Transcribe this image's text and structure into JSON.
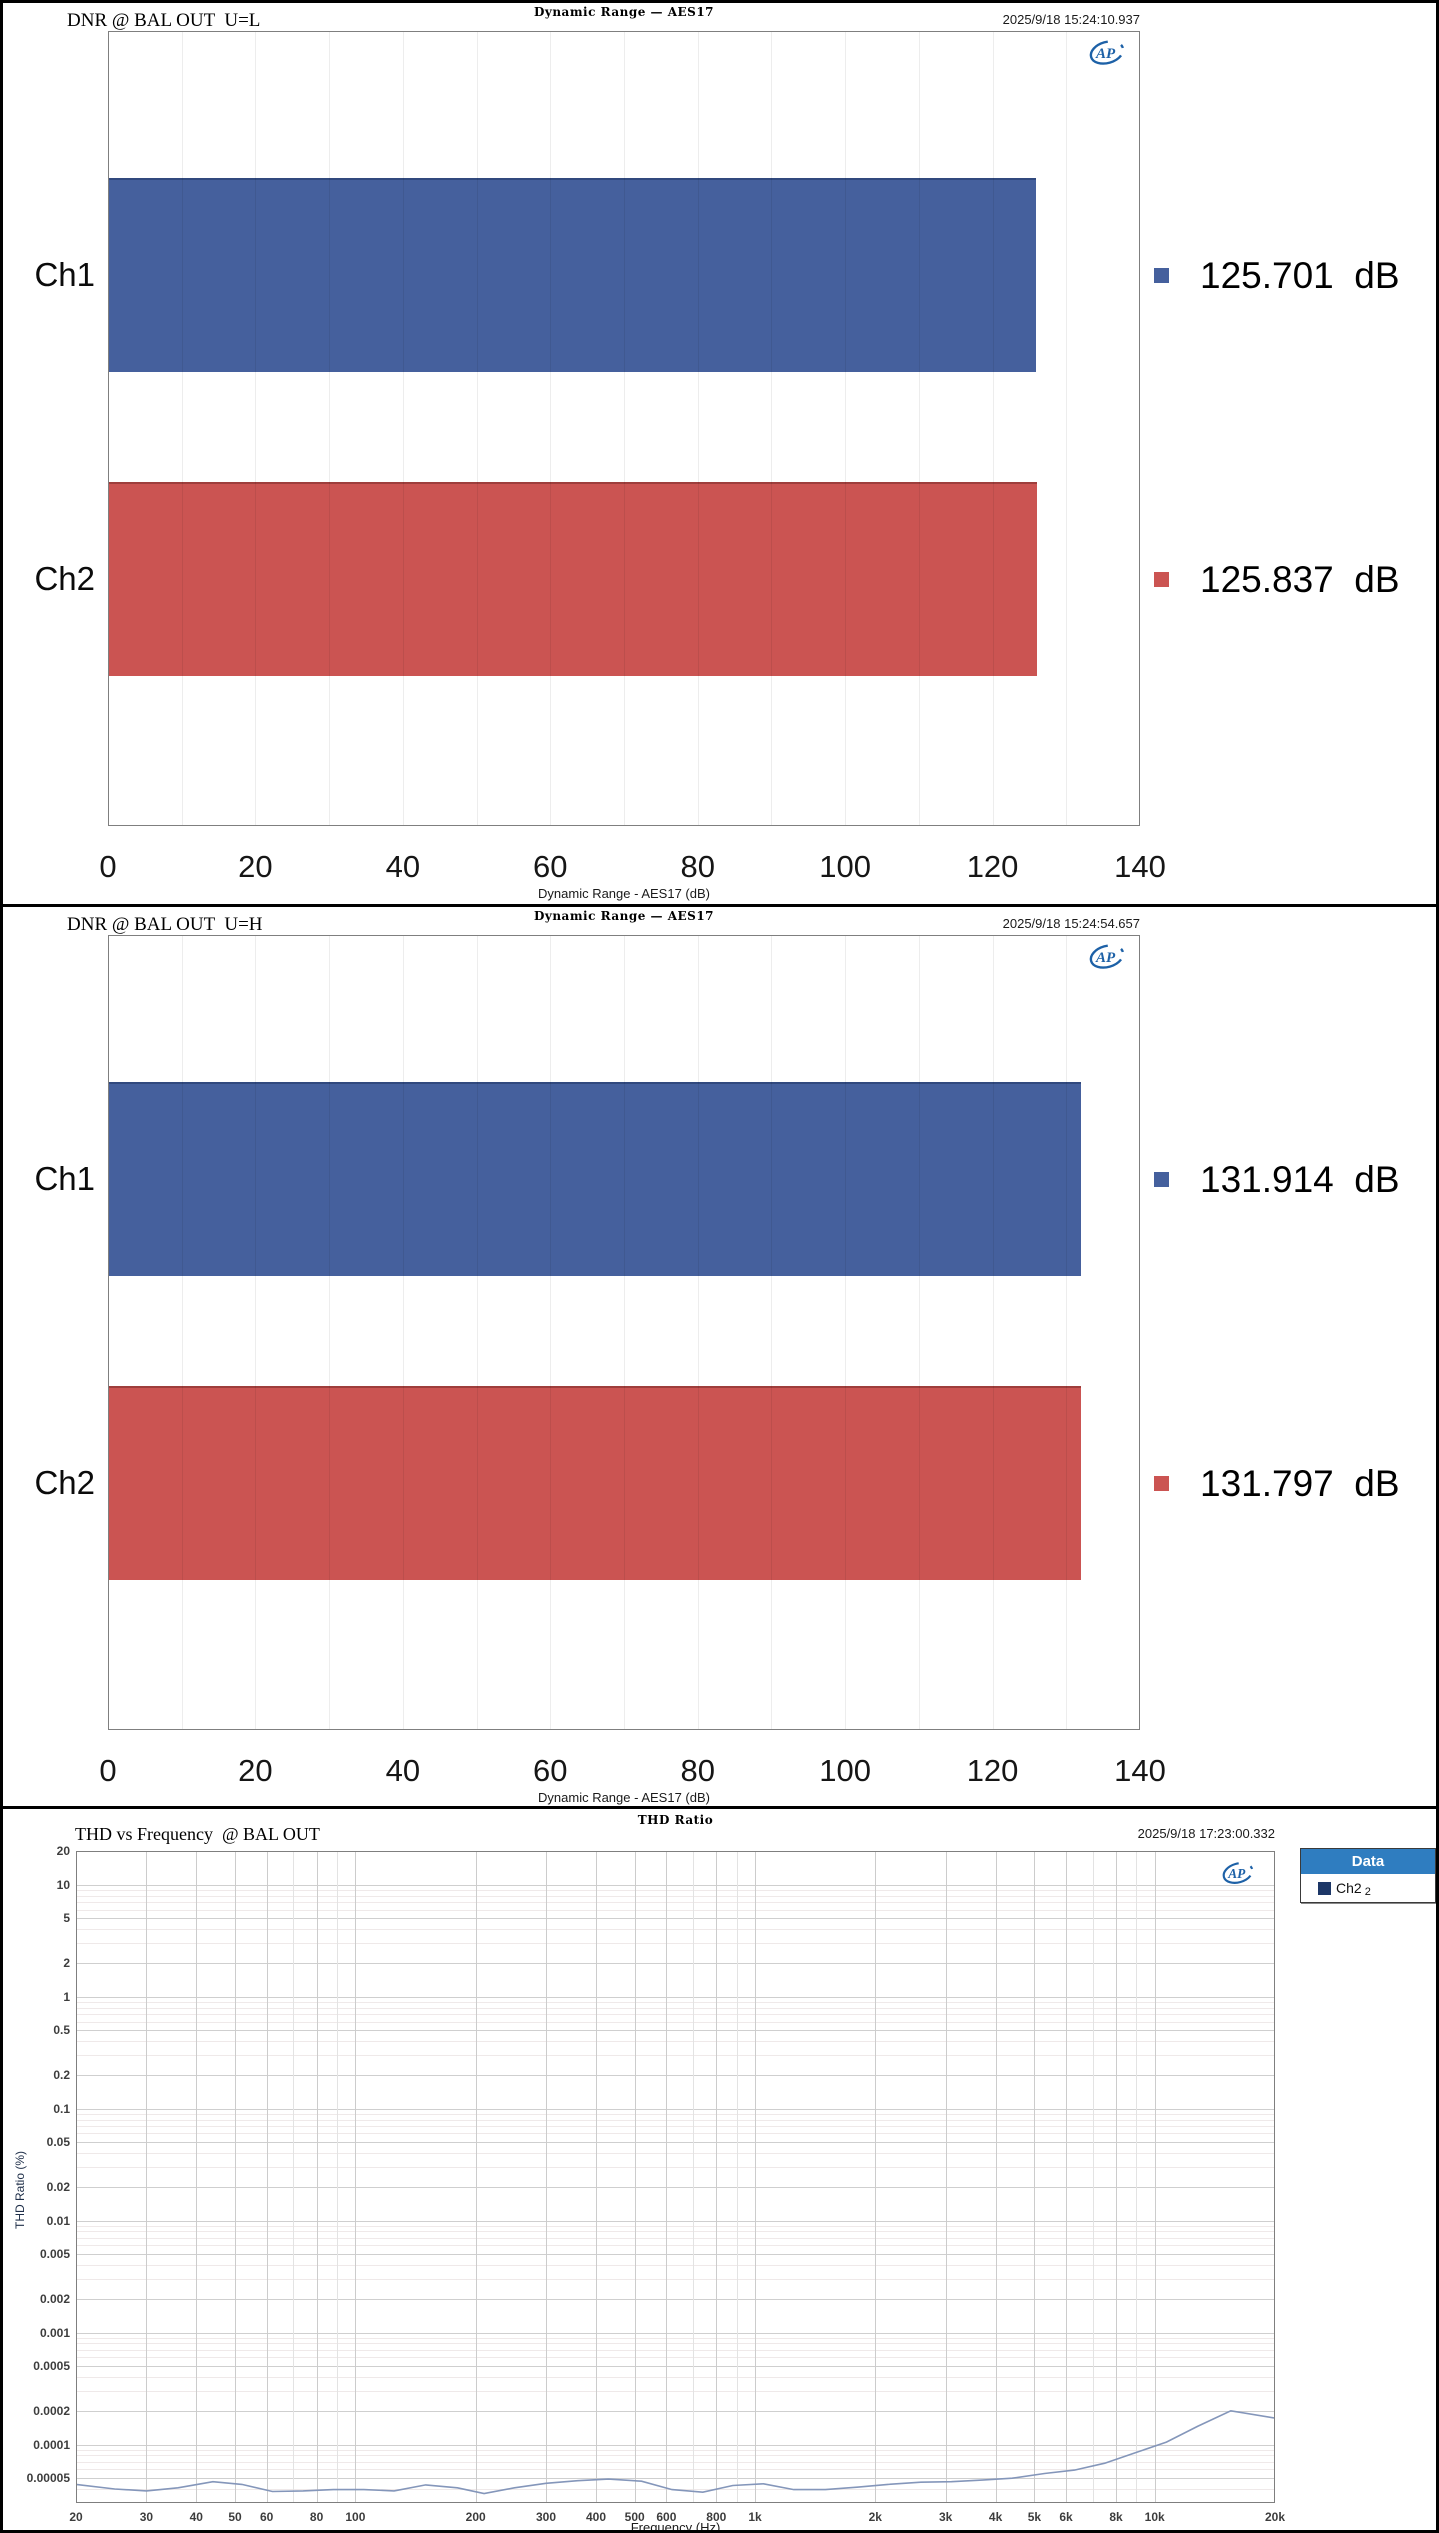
{
  "accent_colors": {
    "bar_blue": "#45609D",
    "bar_red": "#CB5452",
    "logo_blue": "#1D61A7",
    "legend_header_bg": "#2F7DC0",
    "legend_swatch_navy": "#1D3767",
    "thd_line": "#8496BA"
  },
  "chart_data": [
    {
      "type": "bar",
      "orientation": "horizontal",
      "title": "Dynamic Range — AES17",
      "label": "DNR @ BAL OUT  U=L",
      "timestamp": "2025/9/18 15:24:10.937",
      "xlabel": "Dynamic Range - AES17 (dB)",
      "categories": [
        "Ch1",
        "Ch2"
      ],
      "values": [
        125.701,
        125.837
      ],
      "value_labels": [
        "125.701  dB",
        "125.837  dB"
      ],
      "bar_colors": [
        "#45609D",
        "#CB5452"
      ],
      "bar_edge_colors": [
        "#31497E",
        "#9E3E3C"
      ],
      "xlim": [
        0,
        140
      ],
      "x_ticks": [
        0,
        20,
        40,
        60,
        80,
        100,
        120,
        140
      ],
      "grid_minor_step": 10,
      "legend_marker_colors": [
        "#45609D",
        "#CB5452"
      ]
    },
    {
      "type": "bar",
      "orientation": "horizontal",
      "title": "Dynamic Range — AES17",
      "label": "DNR @ BAL OUT  U=H",
      "timestamp": "2025/9/18 15:24:54.657",
      "xlabel": "Dynamic Range - AES17 (dB)",
      "categories": [
        "Ch1",
        "Ch2"
      ],
      "values": [
        131.914,
        131.797
      ],
      "value_labels": [
        "131.914  dB",
        "131.797  dB"
      ],
      "bar_colors": [
        "#45609D",
        "#CB5452"
      ],
      "bar_edge_colors": [
        "#31497E",
        "#9E3E3C"
      ],
      "xlim": [
        0,
        140
      ],
      "x_ticks": [
        0,
        20,
        40,
        60,
        80,
        100,
        120,
        140
      ],
      "grid_minor_step": 10,
      "legend_marker_colors": [
        "#45609D",
        "#CB5452"
      ]
    },
    {
      "type": "line",
      "title": "THD Ratio",
      "label": "THD vs Frequency  @ BAL OUT",
      "timestamp": "2025/9/18 17:23:00.332",
      "xlabel": "Frequency (Hz)",
      "ylabel": "THD Ratio (%)",
      "x_scale": "log",
      "y_scale": "log",
      "xlim": [
        20,
        20000
      ],
      "y_axis_top": 20,
      "y_axis_bottom": 3e-05,
      "x_tick_labels": [
        [
          "20",
          20
        ],
        [
          "30",
          30
        ],
        [
          "40",
          40
        ],
        [
          "50",
          50
        ],
        [
          "60",
          60
        ],
        [
          "80",
          80
        ],
        [
          "100",
          100
        ],
        [
          "200",
          200
        ],
        [
          "300",
          300
        ],
        [
          "400",
          400
        ],
        [
          "500",
          500
        ],
        [
          "600",
          600
        ],
        [
          "800",
          800
        ],
        [
          "1k",
          1000
        ],
        [
          "2k",
          2000
        ],
        [
          "3k",
          3000
        ],
        [
          "4k",
          4000
        ],
        [
          "5k",
          5000
        ],
        [
          "6k",
          6000
        ],
        [
          "8k",
          8000
        ],
        [
          "10k",
          10000
        ],
        [
          "20k",
          20000
        ]
      ],
      "y_tick_labels": [
        [
          "20",
          20
        ],
        [
          "10",
          10
        ],
        [
          "5",
          5
        ],
        [
          "2",
          2
        ],
        [
          "1",
          1
        ],
        [
          "0.5",
          0.5
        ],
        [
          "0.2",
          0.2
        ],
        [
          "0.1",
          0.1
        ],
        [
          "0.05",
          0.05
        ],
        [
          "0.02",
          0.02
        ],
        [
          "0.01",
          0.01
        ],
        [
          "0.005",
          0.005
        ],
        [
          "0.002",
          0.002
        ],
        [
          "0.001",
          0.001
        ],
        [
          "0.0005",
          0.0005
        ],
        [
          "0.0002",
          0.0002
        ],
        [
          "0.0001",
          0.0001
        ],
        [
          "0.00005",
          5e-05
        ]
      ],
      "legend": {
        "header": "Data",
        "entries": [
          {
            "label": "Ch2",
            "sub": "2",
            "swatch": "#1D3767"
          }
        ]
      },
      "series": [
        {
          "name": "Ch2 2",
          "color": "#8496BA",
          "points": [
            [
              20,
              4.4e-05
            ],
            [
              25,
              4e-05
            ],
            [
              30,
              3.85e-05
            ],
            [
              36,
              4.1e-05
            ],
            [
              44,
              4.65e-05
            ],
            [
              52,
              4.4e-05
            ],
            [
              62,
              3.8e-05
            ],
            [
              74,
              3.85e-05
            ],
            [
              88,
              3.95e-05
            ],
            [
              105,
              3.95e-05
            ],
            [
              125,
              3.85e-05
            ],
            [
              150,
              4.35e-05
            ],
            [
              180,
              4.1e-05
            ],
            [
              210,
              3.65e-05
            ],
            [
              250,
              4.1e-05
            ],
            [
              300,
              4.5e-05
            ],
            [
              360,
              4.75e-05
            ],
            [
              430,
              4.9e-05
            ],
            [
              520,
              4.7e-05
            ],
            [
              620,
              3.95e-05
            ],
            [
              740,
              3.75e-05
            ],
            [
              880,
              4.3e-05
            ],
            [
              1050,
              4.45e-05
            ],
            [
              1250,
              3.95e-05
            ],
            [
              1500,
              3.95e-05
            ],
            [
              1800,
              4.15e-05
            ],
            [
              2150,
              4.4e-05
            ],
            [
              2600,
              4.6e-05
            ],
            [
              3100,
              4.65e-05
            ],
            [
              3700,
              4.8e-05
            ],
            [
              4400,
              5e-05
            ],
            [
              5300,
              5.5e-05
            ],
            [
              6300,
              5.9e-05
            ],
            [
              7500,
              6.8e-05
            ],
            [
              9000,
              8.5e-05
            ],
            [
              10700,
              0.000105
            ],
            [
              12800,
              0.000145
            ],
            [
              15500,
              0.0002
            ],
            [
              20000,
              0.000172
            ]
          ]
        }
      ]
    }
  ]
}
